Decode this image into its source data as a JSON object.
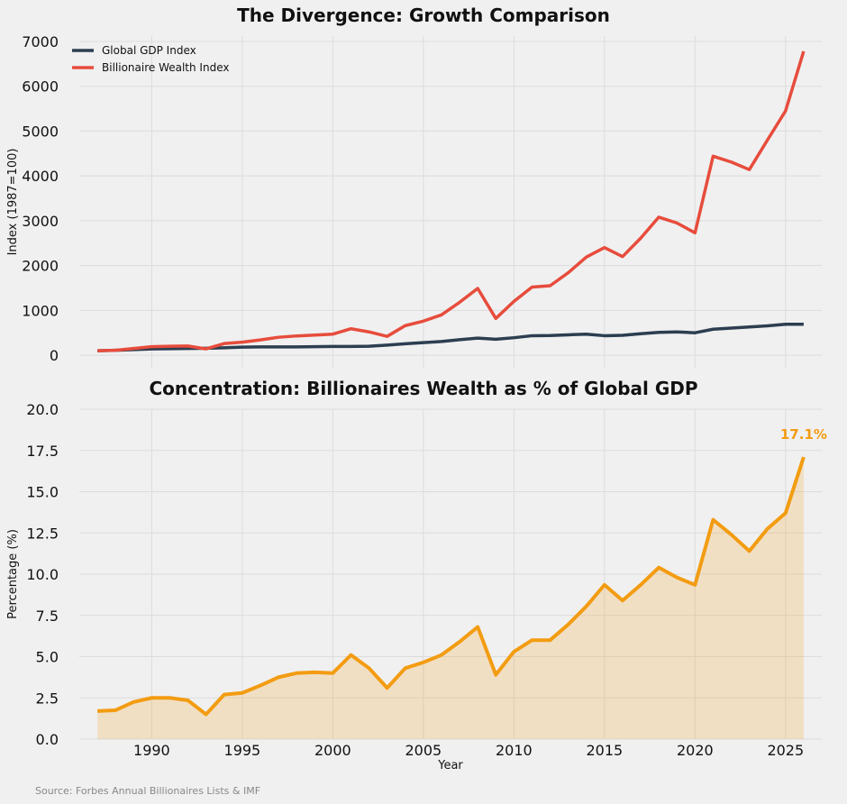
{
  "chart_data": [
    {
      "type": "line",
      "title": "The Divergence: Growth Comparison",
      "xlabel": "",
      "ylabel": "Index (1987=100)",
      "xlim": [
        1986,
        2027
      ],
      "ylim": [
        -280,
        7120
      ],
      "yticks": [
        0,
        1000,
        2000,
        3000,
        4000,
        5000,
        6000,
        7000
      ],
      "xticks": [
        1990,
        1995,
        2000,
        2005,
        2010,
        2015,
        2020,
        2025
      ],
      "grid": true,
      "legend_position": "top-left",
      "x": [
        1987,
        1988,
        1989,
        1990,
        1991,
        1992,
        1993,
        1994,
        1995,
        1996,
        1997,
        1998,
        1999,
        2000,
        2001,
        2002,
        2003,
        2004,
        2005,
        2006,
        2007,
        2008,
        2009,
        2010,
        2011,
        2012,
        2013,
        2014,
        2015,
        2016,
        2017,
        2018,
        2019,
        2020,
        2021,
        2022,
        2023,
        2024,
        2025,
        2026
      ],
      "series": [
        {
          "name": "Global GDP Index",
          "color": "#2c3e50",
          "values": [
            100,
            110,
            125,
            140,
            145,
            150,
            155,
            165,
            180,
            185,
            185,
            185,
            190,
            195,
            195,
            200,
            225,
            255,
            280,
            305,
            345,
            380,
            355,
            390,
            435,
            440,
            455,
            470,
            435,
            445,
            480,
            510,
            520,
            500,
            580,
            605,
            630,
            655,
            690,
            690
          ]
        },
        {
          "name": "Billionaire Wealth Index",
          "color": "#e74c3c",
          "values": [
            100,
            110,
            150,
            190,
            200,
            205,
            140,
            260,
            290,
            340,
            400,
            430,
            450,
            470,
            590,
            520,
            420,
            660,
            760,
            900,
            1180,
            1490,
            820,
            1200,
            1520,
            1550,
            1840,
            2190,
            2400,
            2200,
            2610,
            3080,
            2950,
            2730,
            4440,
            4310,
            4140,
            4800,
            5450,
            6780
          ]
        }
      ]
    },
    {
      "type": "area",
      "title": "Concentration: Billionaires Wealth as % of Global GDP",
      "xlabel": "Year",
      "ylabel": "Percentage (%)",
      "xlim": [
        1986,
        2027
      ],
      "ylim": [
        0,
        20
      ],
      "yticks": [
        0.0,
        2.5,
        5.0,
        7.5,
        10.0,
        12.5,
        15.0,
        17.5,
        20.0
      ],
      "xticks": [
        1990,
        1995,
        2000,
        2005,
        2010,
        2015,
        2020,
        2025
      ],
      "grid": true,
      "annotation": "17.1%",
      "color": "#f39c12",
      "x": [
        1987,
        1988,
        1989,
        1990,
        1991,
        1992,
        1993,
        1994,
        1995,
        1996,
        1997,
        1998,
        1999,
        2000,
        2001,
        2002,
        2003,
        2004,
        2005,
        2006,
        2007,
        2008,
        2009,
        2010,
        2011,
        2012,
        2013,
        2014,
        2015,
        2016,
        2017,
        2018,
        2019,
        2020,
        2021,
        2022,
        2023,
        2024,
        2025,
        2026
      ],
      "values": [
        1.7,
        1.75,
        2.25,
        2.5,
        2.5,
        2.35,
        1.5,
        2.7,
        2.8,
        3.25,
        3.75,
        4.0,
        4.05,
        4.0,
        5.1,
        4.3,
        3.1,
        4.3,
        4.65,
        5.1,
        5.9,
        6.8,
        3.9,
        5.3,
        6.0,
        6.0,
        6.95,
        8.05,
        9.35,
        8.4,
        9.35,
        10.4,
        9.8,
        9.35,
        13.3,
        12.4,
        11.4,
        12.75,
        13.7,
        17.1
      ]
    }
  ],
  "source": "Source: Forbes Annual Billionaires Lists & IMF"
}
